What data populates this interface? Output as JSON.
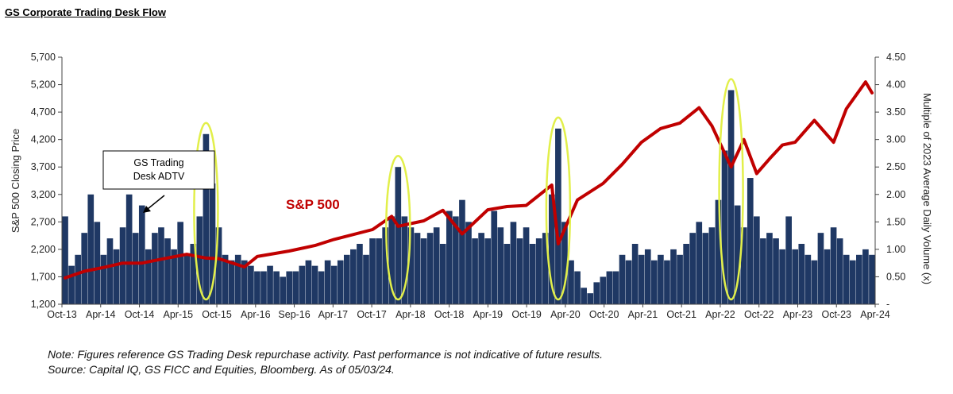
{
  "title": "GS Corporate Trading Desk Flow",
  "footnote": {
    "note": "Note: Figures reference GS Trading Desk repurchase activity. Past performance is not indicative of future results.",
    "source": "Source: Capital IQ, GS FICC and Equities, Bloomberg.  As of 05/03/24."
  },
  "colors": {
    "sp500_line": "#c00000",
    "adtv_bars": "#1f3864",
    "highlight_ellipse": "#e2ef4a"
  },
  "chart_data": {
    "type": "bar+line",
    "x_tick_labels": [
      "Oct-13",
      "Apr-14",
      "Oct-14",
      "Apr-15",
      "Oct-15",
      "Apr-16",
      "Sep-16",
      "Apr-17",
      "Oct-17",
      "Apr-18",
      "Oct-18",
      "Apr-19",
      "Oct-19",
      "Apr-20",
      "Oct-20",
      "Apr-21",
      "Oct-21",
      "Apr-22",
      "Oct-22",
      "Apr-23",
      "Oct-23",
      "Apr-24"
    ],
    "y_left": {
      "label": "S&P 500 Closing Price",
      "range": [
        1200,
        5700
      ],
      "ticks": [
        "1,200",
        "1,700",
        "2,200",
        "2,700",
        "3,200",
        "3,700",
        "4,200",
        "4,700",
        "5,200",
        "5,700"
      ]
    },
    "y_right": {
      "label": "Multiple of 2023 Average Daily Volume (x)",
      "range": [
        0,
        4.5
      ],
      "ticks": [
        "-",
        "0.50",
        "1.00",
        "1.50",
        "2.00",
        "2.50",
        "3.00",
        "3.50",
        "4.00",
        "4.50"
      ]
    },
    "series": [
      {
        "name": "S&P 500",
        "type": "line",
        "axis": "left",
        "points": [
          [
            "2013-10",
            1680
          ],
          [
            "2014-01",
            1800
          ],
          [
            "2014-04",
            1870
          ],
          [
            "2014-07",
            1950
          ],
          [
            "2014-10",
            1950
          ],
          [
            "2015-01",
            2020
          ],
          [
            "2015-05",
            2110
          ],
          [
            "2015-08",
            2040
          ],
          [
            "2015-10",
            2030
          ],
          [
            "2016-02",
            1880
          ],
          [
            "2016-04",
            2070
          ],
          [
            "2016-09",
            2170
          ],
          [
            "2017-01",
            2270
          ],
          [
            "2017-04",
            2380
          ],
          [
            "2017-10",
            2560
          ],
          [
            "2018-01",
            2800
          ],
          [
            "2018-02",
            2620
          ],
          [
            "2018-06",
            2720
          ],
          [
            "2018-09",
            2910
          ],
          [
            "2018-12",
            2480
          ],
          [
            "2019-04",
            2920
          ],
          [
            "2019-07",
            2980
          ],
          [
            "2019-10",
            3000
          ],
          [
            "2020-02",
            3370
          ],
          [
            "2020-03",
            2300
          ],
          [
            "2020-06",
            3100
          ],
          [
            "2020-10",
            3400
          ],
          [
            "2021-01",
            3750
          ],
          [
            "2021-04",
            4150
          ],
          [
            "2021-07",
            4400
          ],
          [
            "2021-10",
            4500
          ],
          [
            "2022-01",
            4780
          ],
          [
            "2022-03",
            4450
          ],
          [
            "2022-06",
            3700
          ],
          [
            "2022-08",
            4200
          ],
          [
            "2022-10",
            3580
          ],
          [
            "2022-12",
            3850
          ],
          [
            "2023-02",
            4100
          ],
          [
            "2023-04",
            4150
          ],
          [
            "2023-07",
            4550
          ],
          [
            "2023-10",
            4150
          ],
          [
            "2023-12",
            4760
          ],
          [
            "2024-03",
            5250
          ],
          [
            "2024-04",
            5050
          ]
        ]
      },
      {
        "name": "GS Trading Desk ADTV",
        "type": "bar",
        "axis": "right",
        "points": [
          [
            "2013-10",
            1.6
          ],
          [
            "2013-11",
            0.7
          ],
          [
            "2013-12",
            0.9
          ],
          [
            "2014-01",
            1.3
          ],
          [
            "2014-02",
            2.0
          ],
          [
            "2014-03",
            1.5
          ],
          [
            "2014-04",
            0.9
          ],
          [
            "2014-05",
            1.2
          ],
          [
            "2014-06",
            1.0
          ],
          [
            "2014-07",
            1.4
          ],
          [
            "2014-08",
            2.0
          ],
          [
            "2014-09",
            1.3
          ],
          [
            "2014-10",
            1.8
          ],
          [
            "2014-11",
            1.0
          ],
          [
            "2014-12",
            1.3
          ],
          [
            "2015-01",
            1.4
          ],
          [
            "2015-02",
            1.2
          ],
          [
            "2015-03",
            1.0
          ],
          [
            "2015-04",
            1.5
          ],
          [
            "2015-05",
            0.9
          ],
          [
            "2015-06",
            1.1
          ],
          [
            "2015-07",
            1.6
          ],
          [
            "2015-08",
            3.1
          ],
          [
            "2015-09",
            2.2
          ],
          [
            "2015-10",
            1.4
          ],
          [
            "2015-11",
            0.9
          ],
          [
            "2015-12",
            0.8
          ],
          [
            "2016-01",
            0.9
          ],
          [
            "2016-02",
            0.8
          ],
          [
            "2016-03",
            0.7
          ],
          [
            "2016-04",
            0.6
          ],
          [
            "2016-05",
            0.6
          ],
          [
            "2016-06",
            0.7
          ],
          [
            "2016-07",
            0.6
          ],
          [
            "2016-08",
            0.5
          ],
          [
            "2016-09",
            0.6
          ],
          [
            "2016-10",
            0.6
          ],
          [
            "2016-11",
            0.7
          ],
          [
            "2016-12",
            0.8
          ],
          [
            "2017-01",
            0.7
          ],
          [
            "2017-02",
            0.6
          ],
          [
            "2017-03",
            0.8
          ],
          [
            "2017-04",
            0.7
          ],
          [
            "2017-05",
            0.8
          ],
          [
            "2017-06",
            0.9
          ],
          [
            "2017-07",
            1.0
          ],
          [
            "2017-08",
            1.1
          ],
          [
            "2017-09",
            0.9
          ],
          [
            "2017-10",
            1.2
          ],
          [
            "2017-11",
            1.2
          ],
          [
            "2017-12",
            1.4
          ],
          [
            "2018-01",
            1.6
          ],
          [
            "2018-02",
            2.5
          ],
          [
            "2018-03",
            1.6
          ],
          [
            "2018-04",
            1.4
          ],
          [
            "2018-05",
            1.3
          ],
          [
            "2018-06",
            1.2
          ],
          [
            "2018-07",
            1.3
          ],
          [
            "2018-08",
            1.4
          ],
          [
            "2018-09",
            1.1
          ],
          [
            "2018-10",
            1.7
          ],
          [
            "2018-11",
            1.6
          ],
          [
            "2018-12",
            1.9
          ],
          [
            "2019-01",
            1.5
          ],
          [
            "2019-02",
            1.2
          ],
          [
            "2019-03",
            1.3
          ],
          [
            "2019-04",
            1.2
          ],
          [
            "2019-05",
            1.7
          ],
          [
            "2019-06",
            1.4
          ],
          [
            "2019-07",
            1.1
          ],
          [
            "2019-08",
            1.5
          ],
          [
            "2019-09",
            1.2
          ],
          [
            "2019-10",
            1.4
          ],
          [
            "2019-11",
            1.1
          ],
          [
            "2019-12",
            1.2
          ],
          [
            "2020-01",
            1.3
          ],
          [
            "2020-02",
            2.0
          ],
          [
            "2020-03",
            3.2
          ],
          [
            "2020-04",
            1.5
          ],
          [
            "2020-05",
            0.8
          ],
          [
            "2020-06",
            0.6
          ],
          [
            "2020-07",
            0.3
          ],
          [
            "2020-08",
            0.2
          ],
          [
            "2020-09",
            0.4
          ],
          [
            "2020-10",
            0.5
          ],
          [
            "2020-11",
            0.6
          ],
          [
            "2020-12",
            0.6
          ],
          [
            "2021-01",
            0.9
          ],
          [
            "2021-02",
            0.8
          ],
          [
            "2021-03",
            1.1
          ],
          [
            "2021-04",
            0.9
          ],
          [
            "2021-05",
            1.0
          ],
          [
            "2021-06",
            0.8
          ],
          [
            "2021-07",
            0.9
          ],
          [
            "2021-08",
            0.8
          ],
          [
            "2021-09",
            1.0
          ],
          [
            "2021-10",
            0.9
          ],
          [
            "2021-11",
            1.1
          ],
          [
            "2021-12",
            1.3
          ],
          [
            "2022-01",
            1.5
          ],
          [
            "2022-02",
            1.3
          ],
          [
            "2022-03",
            1.4
          ],
          [
            "2022-04",
            1.9
          ],
          [
            "2022-05",
            2.8
          ],
          [
            "2022-06",
            3.9
          ],
          [
            "2022-07",
            1.8
          ],
          [
            "2022-08",
            1.4
          ],
          [
            "2022-09",
            2.3
          ],
          [
            "2022-10",
            1.6
          ],
          [
            "2022-11",
            1.2
          ],
          [
            "2022-12",
            1.3
          ],
          [
            "2023-01",
            1.2
          ],
          [
            "2023-02",
            1.0
          ],
          [
            "2023-03",
            1.6
          ],
          [
            "2023-04",
            1.0
          ],
          [
            "2023-05",
            1.1
          ],
          [
            "2023-06",
            0.9
          ],
          [
            "2023-07",
            0.8
          ],
          [
            "2023-08",
            1.3
          ],
          [
            "2023-09",
            1.0
          ],
          [
            "2023-10",
            1.4
          ],
          [
            "2023-11",
            1.2
          ],
          [
            "2023-12",
            0.9
          ],
          [
            "2024-01",
            0.8
          ],
          [
            "2024-02",
            0.9
          ],
          [
            "2024-03",
            1.0
          ],
          [
            "2024-04",
            0.9
          ]
        ]
      }
    ],
    "annotations": {
      "sp500_label": "S&P 500",
      "adtv_callout": [
        "GS Trading",
        "Desk ADTV"
      ],
      "highlighted_periods": [
        "Aug-15",
        "Feb-18",
        "Mar-20",
        "Jun-22"
      ]
    },
    "grid": false,
    "legend": "none"
  }
}
